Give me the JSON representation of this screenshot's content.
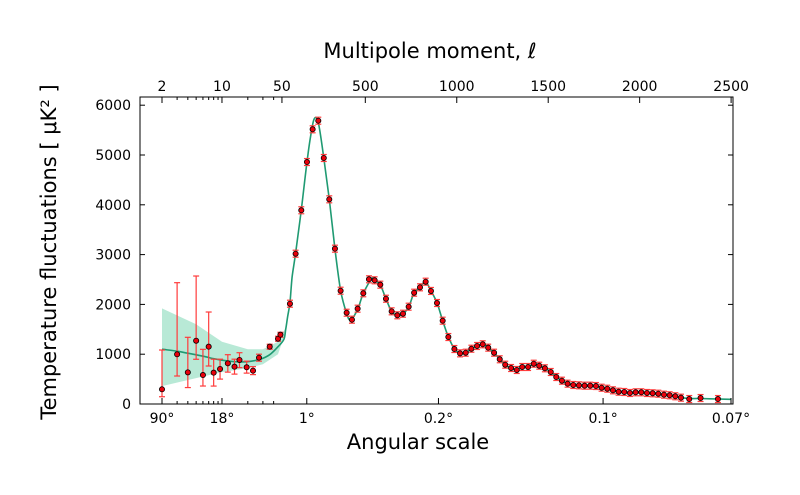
{
  "chart_data": {
    "type": "scatter",
    "title": "",
    "top_xlabel": "Multipole moment, ℓ",
    "xlabel": "Angular scale",
    "ylabel": "Temperature fluctuations [ μK² ]",
    "x_scale": "log for ℓ 2–50, linear for ℓ 50–2500",
    "xlim": [
      2,
      2500
    ],
    "ylim": [
      0,
      6200
    ],
    "grid": false,
    "colors": {
      "points": "#e8000b",
      "error_bars": "#ff3b3b",
      "theory_curve": "#1f9a72",
      "band": "#b4e8d4"
    },
    "y_ticks": [
      "0",
      "1000",
      "2000",
      "3000",
      "4000",
      "5000",
      "6000"
    ],
    "top_ticks": [
      {
        "l": 2,
        "label": "2"
      },
      {
        "l": 10,
        "label": "10"
      },
      {
        "l": 50,
        "label": "50"
      },
      {
        "l": 500,
        "label": "500"
      },
      {
        "l": 1000,
        "label": "1000"
      },
      {
        "l": 1500,
        "label": "1500"
      },
      {
        "l": 2000,
        "label": "2000"
      },
      {
        "l": 2500,
        "label": "2500"
      }
    ],
    "bottom_ticks": [
      {
        "deg": 90,
        "label": "90°"
      },
      {
        "deg": 18,
        "label": "18°"
      },
      {
        "deg": 1,
        "label": "1°"
      },
      {
        "deg": 0.2,
        "label": "0.2°"
      },
      {
        "deg": 0.1,
        "label": "0.1°"
      },
      {
        "deg": 0.07,
        "label": "0.07°"
      }
    ],
    "band": {
      "l": [
        2,
        5,
        10,
        20,
        30,
        45,
        60
      ],
      "lower": [
        360,
        520,
        640,
        720,
        800,
        1000,
        1400
      ],
      "upper": [
        1920,
        1600,
        1250,
        1100,
        1100,
        1250,
        1500
      ]
    },
    "theory": [
      [
        2,
        1100
      ],
      [
        3,
        1060
      ],
      [
        4,
        1020
      ],
      [
        6,
        960
      ],
      [
        8,
        910
      ],
      [
        10,
        880
      ],
      [
        14,
        850
      ],
      [
        20,
        850
      ],
      [
        28,
        900
      ],
      [
        36,
        990
      ],
      [
        45,
        1150
      ],
      [
        55,
        1300
      ],
      [
        65,
        1500
      ],
      [
        75,
        1750
      ],
      [
        88,
        2040
      ],
      [
        100,
        2550
      ],
      [
        119,
        3030
      ],
      [
        150,
        3900
      ],
      [
        181,
        4860
      ],
      [
        200,
        5350
      ],
      [
        220,
        5720
      ],
      [
        243,
        5650
      ],
      [
        273,
        4940
      ],
      [
        303,
        4110
      ],
      [
        334,
        3120
      ],
      [
        365,
        2280
      ],
      [
        398,
        1820
      ],
      [
        420,
        1690
      ],
      [
        458,
        1900
      ],
      [
        489,
        2220
      ],
      [
        535,
        2520
      ],
      [
        551,
        2490
      ],
      [
        582,
        2390
      ],
      [
        613,
        2110
      ],
      [
        644,
        1860
      ],
      [
        675,
        1780
      ],
      [
        706,
        1810
      ],
      [
        737,
        1950
      ],
      [
        767,
        2230
      ],
      [
        799,
        2350
      ],
      [
        830,
        2450
      ],
      [
        859,
        2270
      ],
      [
        892,
        2030
      ],
      [
        923,
        1670
      ],
      [
        954,
        1350
      ],
      [
        987,
        1110
      ],
      [
        1018,
        1020
      ],
      [
        1049,
        1030
      ],
      [
        1080,
        1110
      ],
      [
        1111,
        1165
      ],
      [
        1142,
        1200
      ],
      [
        1172,
        1130
      ],
      [
        1204,
        1030
      ],
      [
        1235,
        900
      ],
      [
        1265,
        790
      ],
      [
        1297,
        720
      ],
      [
        1328,
        685
      ],
      [
        1358,
        740
      ],
      [
        1390,
        745
      ],
      [
        1421,
        805
      ],
      [
        1451,
        770
      ],
      [
        1482,
        715
      ],
      [
        1514,
        645
      ],
      [
        1544,
        545
      ],
      [
        1575,
        470
      ],
      [
        1606,
        410
      ],
      [
        1637,
        385
      ],
      [
        1668,
        375
      ],
      [
        1699,
        370
      ],
      [
        1730,
        365
      ],
      [
        1761,
        360
      ],
      [
        1792,
        330
      ],
      [
        1823,
        305
      ],
      [
        1854,
        275
      ],
      [
        1885,
        250
      ],
      [
        1916,
        240
      ],
      [
        1947,
        225
      ],
      [
        1978,
        232
      ],
      [
        2009,
        232
      ],
      [
        2040,
        222
      ],
      [
        2071,
        214
      ],
      [
        2102,
        205
      ],
      [
        2133,
        188
      ],
      [
        2164,
        175
      ],
      [
        2195,
        155
      ],
      [
        2226,
        130
      ],
      [
        2271,
        110
      ],
      [
        2333,
        110
      ],
      [
        2428,
        100
      ],
      [
        2500,
        95
      ]
    ],
    "points": [
      {
        "l": 2,
        "y": 295,
        "lo": 146,
        "hi": 1084
      },
      {
        "l": 3,
        "y": 998,
        "lo": 562,
        "hi": 2436
      },
      {
        "l": 4,
        "y": 636,
        "lo": 330,
        "hi": 1339
      },
      {
        "l": 5,
        "y": 1271,
        "lo": 898,
        "hi": 2570
      },
      {
        "l": 6,
        "y": 582,
        "lo": 361,
        "hi": 1098
      },
      {
        "l": 7,
        "y": 1151,
        "lo": 763,
        "hi": 1847
      },
      {
        "l": 8,
        "y": 629,
        "lo": 360,
        "hi": 900
      },
      {
        "l": 9.5,
        "y": 703,
        "lo": 500,
        "hi": 900
      },
      {
        "l": 11.7,
        "y": 817,
        "lo": 640,
        "hi": 990
      },
      {
        "l": 14,
        "y": 750,
        "lo": 600,
        "hi": 900
      },
      {
        "l": 16,
        "y": 884,
        "lo": 730,
        "hi": 1030
      },
      {
        "l": 19.4,
        "y": 737,
        "lo": 620,
        "hi": 860
      },
      {
        "l": 23,
        "y": 669,
        "lo": 590,
        "hi": 750
      },
      {
        "l": 27,
        "y": 930,
        "lo": 860,
        "hi": 1000
      },
      {
        "l": 36,
        "y": 1151,
        "lo": 1100,
        "hi": 1200
      },
      {
        "l": 45,
        "y": 1311,
        "lo": 1260,
        "hi": 1360
      },
      {
        "l": 48,
        "y": 1392,
        "lo": 1340,
        "hi": 1440
      },
      {
        "l": 88,
        "y": 2014
      },
      {
        "l": 119,
        "y": 3018
      },
      {
        "l": 150,
        "y": 3890
      },
      {
        "l": 181,
        "y": 4859
      },
      {
        "l": 212,
        "y": 5516
      },
      {
        "l": 243,
        "y": 5689
      },
      {
        "l": 273,
        "y": 4940
      },
      {
        "l": 303,
        "y": 4110
      },
      {
        "l": 334,
        "y": 3119
      },
      {
        "l": 365,
        "y": 2275
      },
      {
        "l": 398,
        "y": 1833
      },
      {
        "l": 427,
        "y": 1693
      },
      {
        "l": 458,
        "y": 1914
      },
      {
        "l": 489,
        "y": 2223
      },
      {
        "l": 520,
        "y": 2504
      },
      {
        "l": 551,
        "y": 2484
      },
      {
        "l": 582,
        "y": 2396
      },
      {
        "l": 613,
        "y": 2114
      },
      {
        "l": 644,
        "y": 1861
      },
      {
        "l": 675,
        "y": 1781
      },
      {
        "l": 706,
        "y": 1813
      },
      {
        "l": 737,
        "y": 1954
      },
      {
        "l": 767,
        "y": 2235
      },
      {
        "l": 799,
        "y": 2343
      },
      {
        "l": 830,
        "y": 2456
      },
      {
        "l": 859,
        "y": 2270
      },
      {
        "l": 892,
        "y": 2028
      },
      {
        "l": 923,
        "y": 1673
      },
      {
        "l": 954,
        "y": 1345
      },
      {
        "l": 987,
        "y": 1104
      },
      {
        "l": 1018,
        "y": 1017
      },
      {
        "l": 1049,
        "y": 1030
      },
      {
        "l": 1080,
        "y": 1110
      },
      {
        "l": 1111,
        "y": 1165
      },
      {
        "l": 1142,
        "y": 1199
      },
      {
        "l": 1172,
        "y": 1131
      },
      {
        "l": 1204,
        "y": 1030
      },
      {
        "l": 1235,
        "y": 898
      },
      {
        "l": 1265,
        "y": 789
      },
      {
        "l": 1297,
        "y": 723
      },
      {
        "l": 1328,
        "y": 683
      },
      {
        "l": 1358,
        "y": 743
      },
      {
        "l": 1390,
        "y": 743
      },
      {
        "l": 1421,
        "y": 809
      },
      {
        "l": 1451,
        "y": 769
      },
      {
        "l": 1482,
        "y": 717
      },
      {
        "l": 1514,
        "y": 643
      },
      {
        "l": 1544,
        "y": 542
      },
      {
        "l": 1575,
        "y": 468
      },
      {
        "l": 1606,
        "y": 408
      },
      {
        "l": 1637,
        "y": 382
      },
      {
        "l": 1668,
        "y": 375
      },
      {
        "l": 1699,
        "y": 368
      },
      {
        "l": 1730,
        "y": 368
      },
      {
        "l": 1761,
        "y": 361
      },
      {
        "l": 1792,
        "y": 327
      },
      {
        "l": 1823,
        "y": 307
      },
      {
        "l": 1854,
        "y": 275
      },
      {
        "l": 1885,
        "y": 247
      },
      {
        "l": 1916,
        "y": 241
      },
      {
        "l": 1947,
        "y": 221
      },
      {
        "l": 1978,
        "y": 235
      },
      {
        "l": 2009,
        "y": 235
      },
      {
        "l": 2040,
        "y": 221
      },
      {
        "l": 2071,
        "y": 215
      },
      {
        "l": 2102,
        "y": 207
      },
      {
        "l": 2133,
        "y": 187
      },
      {
        "l": 2164,
        "y": 175
      },
      {
        "l": 2195,
        "y": 155
      },
      {
        "l": 2226,
        "y": 127
      },
      {
        "l": 2271,
        "y": 100
      },
      {
        "l": 2333,
        "y": 120
      },
      {
        "l": 2428,
        "y": 100
      }
    ]
  }
}
